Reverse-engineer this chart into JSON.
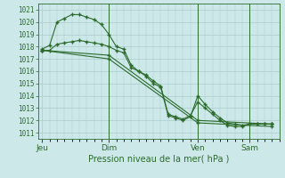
{
  "title": "Pression niveau de la mer( hPa )",
  "bg_color": "#cce8e8",
  "grid_color": "#aacccc",
  "line_color": "#2d6b2d",
  "ylim": [
    1010.5,
    1021.5
  ],
  "yticks": [
    1011,
    1012,
    1013,
    1014,
    1015,
    1016,
    1017,
    1018,
    1019,
    1020,
    1021
  ],
  "xtick_labels": [
    "Jeu",
    "Dim",
    "Ven",
    "Sam"
  ],
  "xtick_positions": [
    0,
    9,
    21,
    28
  ],
  "vlines": [
    9,
    21,
    28
  ],
  "series": [
    {
      "x": [
        0,
        1,
        2,
        3,
        4,
        5,
        6,
        7,
        8,
        9,
        10,
        11,
        12,
        13,
        14,
        15,
        16,
        17,
        18,
        19,
        20,
        21,
        22,
        23,
        24,
        25,
        26,
        27,
        28,
        29,
        30,
        31
      ],
      "y": [
        1017.8,
        1018.1,
        1020.0,
        1020.3,
        1020.6,
        1020.6,
        1020.4,
        1020.2,
        1019.8,
        1019.0,
        1018.0,
        1017.8,
        1016.5,
        1016.0,
        1015.6,
        1015.0,
        1014.7,
        1012.4,
        1012.2,
        1012.0,
        1012.3,
        1014.0,
        1013.3,
        1012.7,
        1012.2,
        1011.8,
        1011.7,
        1011.6,
        1011.7,
        1011.7,
        1011.7,
        1011.7
      ]
    },
    {
      "x": [
        0,
        1,
        2,
        3,
        4,
        5,
        6,
        7,
        8,
        9,
        10,
        11,
        12,
        13,
        14,
        15,
        16,
        17,
        18,
        19,
        20,
        21,
        22,
        23,
        24,
        25,
        26,
        27,
        28,
        29,
        30,
        31
      ],
      "y": [
        1017.7,
        1017.7,
        1018.2,
        1018.3,
        1018.4,
        1018.5,
        1018.4,
        1018.3,
        1018.2,
        1018.0,
        1017.7,
        1017.5,
        1016.3,
        1016.0,
        1015.7,
        1015.2,
        1014.8,
        1012.5,
        1012.3,
        1012.1,
        1012.4,
        1013.5,
        1013.0,
        1012.5,
        1012.0,
        1011.6,
        1011.5,
        1011.5,
        1011.7,
        1011.7,
        1011.7,
        1011.7
      ]
    },
    {
      "x": [
        0,
        9,
        21,
        31
      ],
      "y": [
        1017.7,
        1017.3,
        1012.0,
        1011.7
      ]
    },
    {
      "x": [
        0,
        9,
        21,
        31
      ],
      "y": [
        1017.7,
        1017.0,
        1011.8,
        1011.5
      ]
    }
  ],
  "n_points": 32,
  "xlim": [
    -0.5,
    32
  ]
}
